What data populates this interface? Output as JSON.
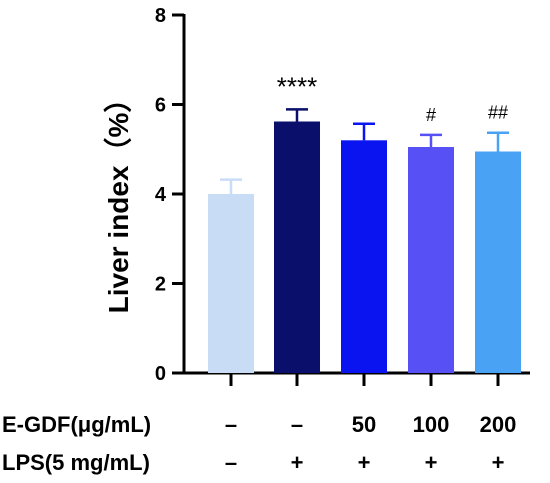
{
  "chart_data": {
    "type": "bar",
    "title": "",
    "xlabel": "",
    "ylabel": "Liver index（%）",
    "ylim": [
      0,
      8
    ],
    "yticks": [
      "0",
      "2",
      "4",
      "6",
      "8"
    ],
    "grid": false,
    "colors": [
      "#c9dcf5",
      "#0a0f6b",
      "#0a14f0",
      "#3a4bf0",
      "#5650f5",
      "#4aa2f5"
    ],
    "bars": [
      {
        "value": 4.0,
        "error": 0.32,
        "annotation": "",
        "color": "#c9dcf5"
      },
      {
        "value": 5.62,
        "error": 0.27,
        "annotation": "****",
        "color": "#0a0f6b"
      },
      {
        "value": 5.2,
        "error": 0.37,
        "annotation": "",
        "color": "#0a14f0"
      },
      {
        "value": 5.05,
        "error": 0.27,
        "annotation": "#",
        "color": "#5650f5"
      },
      {
        "value": 4.95,
        "error": 0.42,
        "annotation": "##",
        "color": "#4aa2f5"
      }
    ],
    "treatment_rows": [
      {
        "label": "E-GDF(μg/mL)",
        "values": [
          "–",
          "–",
          "50",
          "100",
          "200"
        ]
      },
      {
        "label": "LPS(5 mg/mL)",
        "values": [
          "–",
          "+",
          "+",
          "+",
          "+"
        ]
      }
    ]
  }
}
